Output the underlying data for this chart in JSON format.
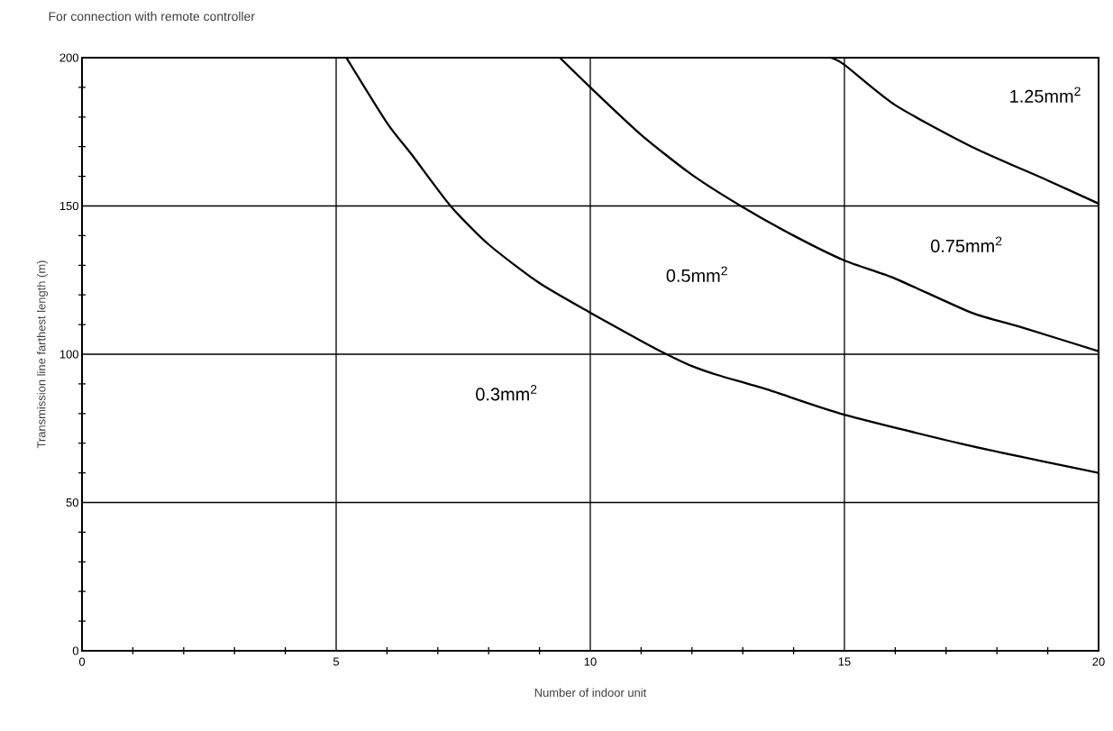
{
  "chart_data": {
    "type": "line",
    "title": "For connection with remote controller",
    "xlabel": "Number of indoor unit",
    "ylabel": "Transmission line farthest length (m)",
    "xlim": [
      0,
      20
    ],
    "ylim": [
      0,
      200
    ],
    "xticks": [
      0,
      {
        "value": 1,
        "label": null
      },
      {
        "value": 2,
        "label": null
      },
      {
        "value": 3,
        "label": null
      },
      {
        "value": 4,
        "label": null
      },
      5,
      {
        "value": 6,
        "label": null
      },
      {
        "value": 7,
        "label": null
      },
      {
        "value": 8,
        "label": null
      },
      {
        "value": 9,
        "label": null
      },
      10,
      {
        "value": 11,
        "label": null
      },
      {
        "value": 12,
        "label": null
      },
      {
        "value": 13,
        "label": null
      },
      {
        "value": 14,
        "label": null
      },
      15,
      {
        "value": 16,
        "label": null
      },
      {
        "value": 17,
        "label": null
      },
      {
        "value": 18,
        "label": null
      },
      {
        "value": 19,
        "label": null
      },
      20
    ],
    "yticks": [
      0,
      {
        "value": 10,
        "label": null
      },
      {
        "value": 20,
        "label": null
      },
      {
        "value": 30,
        "label": null
      },
      {
        "value": 40,
        "label": null
      },
      50,
      {
        "value": 60,
        "label": null
      },
      {
        "value": 70,
        "label": null
      },
      {
        "value": 80,
        "label": null
      },
      {
        "value": 90,
        "label": null
      },
      100,
      {
        "value": 110,
        "label": null
      },
      {
        "value": 120,
        "label": null
      },
      {
        "value": 130,
        "label": null
      },
      {
        "value": 140,
        "label": null
      },
      150,
      {
        "value": 160,
        "label": null
      },
      {
        "value": 170,
        "label": null
      },
      {
        "value": 180,
        "label": null
      },
      {
        "value": 190,
        "label": null
      },
      200
    ],
    "grid": true,
    "marker": "none",
    "line_style": "solid",
    "series": [
      {
        "color": "#000000",
        "x": [
          5.2,
          6,
          6.5,
          7.25,
          8,
          9,
          10,
          11,
          11.5,
          12,
          12.5,
          13.5,
          15,
          17.5,
          20
        ],
        "values": [
          200,
          178,
          167,
          150,
          137,
          124,
          114,
          104.5,
          100,
          96,
          93,
          88,
          79.6,
          69,
          60
        ]
      },
      {
        "color": "#000000",
        "x": [
          9.4,
          10,
          11,
          12,
          12.96,
          14,
          15,
          16,
          17.5,
          18.5,
          20
        ],
        "values": [
          200,
          190,
          174,
          160.5,
          150,
          140,
          131.6,
          125.5,
          114,
          109,
          101
        ]
      },
      {
        "color": "#000000",
        "x": [
          14.73,
          15,
          16,
          17.5,
          19,
          20
        ],
        "values": [
          200,
          197.6,
          184,
          170,
          158.6,
          150.8
        ]
      }
    ],
    "annotations": [
      "0.3mm$^{2}$",
      "0.5mm$^{2}$",
      "0.75mm$^{2}$",
      "1.25mm$^{2}$"
    ]
  }
}
